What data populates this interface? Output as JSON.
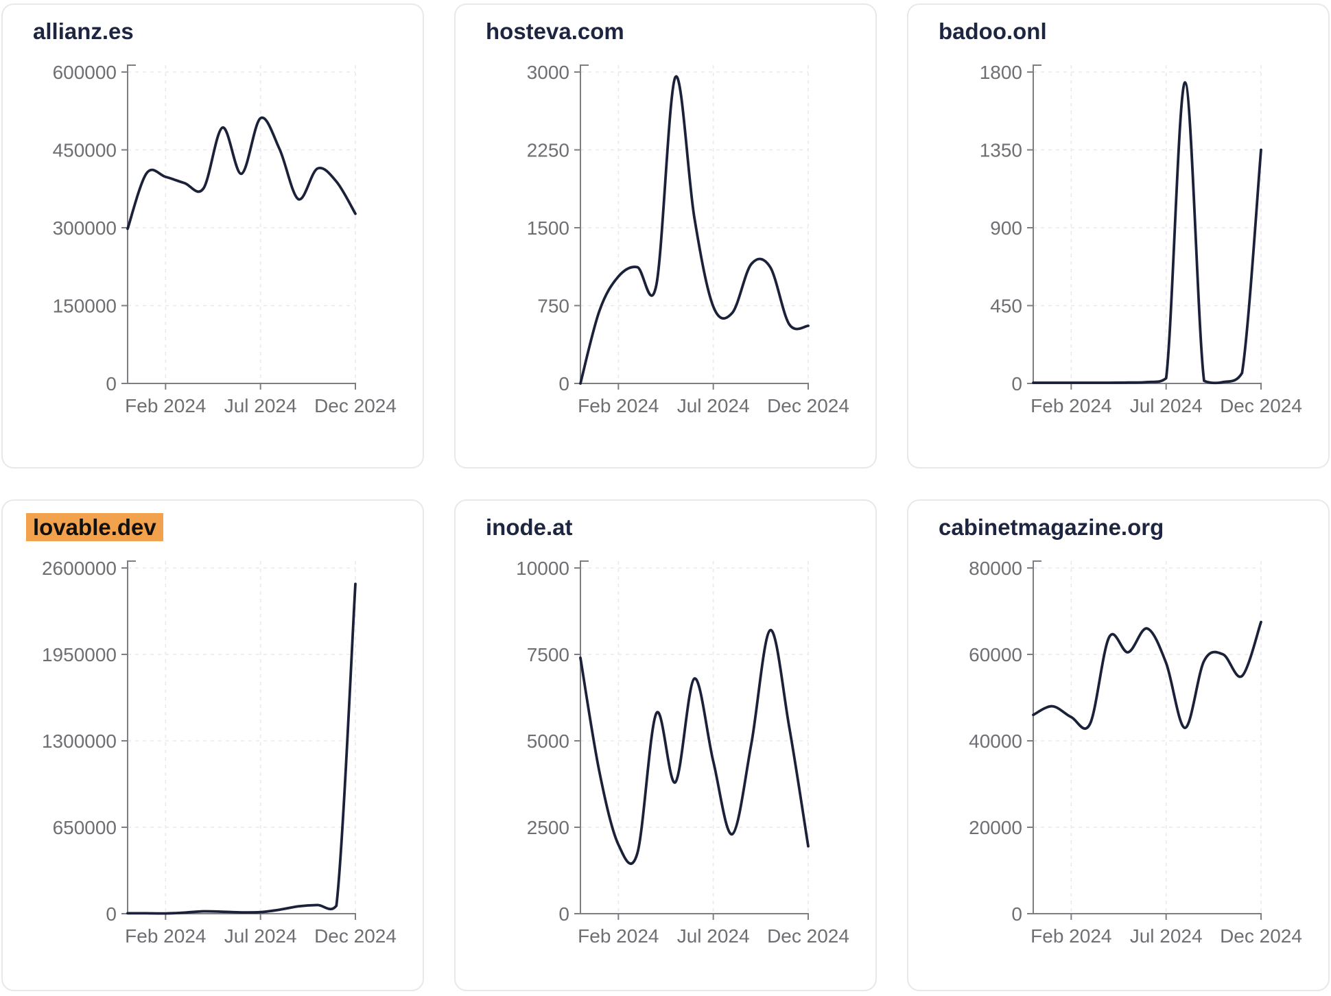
{
  "page_title": "Domain traffic trend dashboard",
  "colors": {
    "background": "#ffffff",
    "card_border": "#e7e8ec",
    "title_text": "#1d2541",
    "highlight_bg": "#f2a24c",
    "highlight_text": "#111111",
    "series_line": "#1b2138",
    "axis": "#7d7d82",
    "tick_label": "#6e6e73",
    "gridline": "#e9eaee"
  },
  "chart_data": [
    {
      "type": "line",
      "title": "allianz.es",
      "highlighted_title": false,
      "x": [
        "Dec 2023",
        "Jan 2024",
        "Feb 2024",
        "Mar 2024",
        "Apr 2024",
        "May 2024",
        "Jun 2024",
        "Jul 2024",
        "Aug 2024",
        "Sep 2024",
        "Oct 2024",
        "Nov 2024",
        "Dec 2024"
      ],
      "values": [
        298000,
        405000,
        398000,
        386000,
        376000,
        493000,
        404000,
        511000,
        452000,
        355000,
        414000,
        389000,
        327000
      ],
      "ylim": [
        0,
        600000
      ],
      "y_ticks": [
        600000,
        450000,
        300000,
        150000,
        0
      ],
      "x_tick_labels": [
        "Feb 2024",
        "Jul 2024",
        "Dec 2024"
      ],
      "x_tick_positions": [
        2,
        7,
        12
      ],
      "grid": "dashed",
      "legend": "none"
    },
    {
      "type": "line",
      "title": "hosteva.com",
      "highlighted_title": false,
      "x": [
        "Dec 2023",
        "Jan 2024",
        "Feb 2024",
        "Mar 2024",
        "Apr 2024",
        "May 2024",
        "Jun 2024",
        "Jul 2024",
        "Aug 2024",
        "Sep 2024",
        "Oct 2024",
        "Nov 2024",
        "Dec 2024"
      ],
      "values": [
        0,
        700,
        1030,
        1120,
        950,
        2950,
        1600,
        740,
        680,
        1150,
        1120,
        570,
        555
      ],
      "ylim": [
        0,
        3000
      ],
      "y_ticks": [
        3000,
        2250,
        1500,
        750,
        0
      ],
      "x_tick_labels": [
        "Feb 2024",
        "Jul 2024",
        "Dec 2024"
      ],
      "x_tick_positions": [
        2,
        7,
        12
      ],
      "grid": "dashed",
      "legend": "none"
    },
    {
      "type": "line",
      "title": "badoo.onl",
      "highlighted_title": false,
      "x": [
        "Dec 2023",
        "Jan 2024",
        "Feb 2024",
        "Mar 2024",
        "Apr 2024",
        "May 2024",
        "Jun 2024",
        "Jul 2024",
        "Aug 2024",
        "Sep 2024",
        "Oct 2024",
        "Nov 2024",
        "Dec 2024"
      ],
      "values": [
        4,
        4,
        4,
        4,
        4,
        5,
        8,
        30,
        1740,
        15,
        8,
        60,
        1350
      ],
      "ylim": [
        0,
        1800
      ],
      "y_ticks": [
        1800,
        1350,
        900,
        450,
        0
      ],
      "x_tick_labels": [
        "Feb 2024",
        "Jul 2024",
        "Dec 2024"
      ],
      "x_tick_positions": [
        2,
        7,
        12
      ],
      "grid": "dashed",
      "legend": "none"
    },
    {
      "type": "line",
      "title": "lovable.dev",
      "highlighted_title": true,
      "x": [
        "Dec 2023",
        "Jan 2024",
        "Feb 2024",
        "Mar 2024",
        "Apr 2024",
        "May 2024",
        "Jun 2024",
        "Jul 2024",
        "Aug 2024",
        "Sep 2024",
        "Oct 2024",
        "Nov 2024",
        "Dec 2024"
      ],
      "values": [
        3000,
        3000,
        2000,
        8000,
        18000,
        15000,
        10000,
        12000,
        30000,
        55000,
        65000,
        60000,
        2480000
      ],
      "ylim": [
        0,
        2600000
      ],
      "y_ticks": [
        2600000,
        1950000,
        1300000,
        650000,
        0
      ],
      "x_tick_labels": [
        "Feb 2024",
        "Jul 2024",
        "Dec 2024"
      ],
      "x_tick_positions": [
        2,
        7,
        12
      ],
      "grid": "dashed",
      "legend": "none"
    },
    {
      "type": "line",
      "title": "inode.at",
      "highlighted_title": false,
      "x": [
        "Dec 2023",
        "Jan 2024",
        "Feb 2024",
        "Mar 2024",
        "Apr 2024",
        "May 2024",
        "Jun 2024",
        "Jul 2024",
        "Aug 2024",
        "Sep 2024",
        "Oct 2024",
        "Nov 2024",
        "Dec 2024"
      ],
      "values": [
        7400,
        4100,
        2000,
        1750,
        5800,
        3800,
        6800,
        4400,
        2300,
        4900,
        8200,
        5400,
        1950
      ],
      "ylim": [
        0,
        10000
      ],
      "y_ticks": [
        10000,
        7500,
        5000,
        2500,
        0
      ],
      "x_tick_labels": [
        "Feb 2024",
        "Jul 2024",
        "Dec 2024"
      ],
      "x_tick_positions": [
        2,
        7,
        12
      ],
      "grid": "dashed",
      "legend": "none"
    },
    {
      "type": "line",
      "title": "cabinetmagazine.org",
      "highlighted_title": false,
      "x": [
        "Dec 2023",
        "Jan 2024",
        "Feb 2024",
        "Mar 2024",
        "Apr 2024",
        "May 2024",
        "Jun 2024",
        "Jul 2024",
        "Aug 2024",
        "Sep 2024",
        "Oct 2024",
        "Nov 2024",
        "Dec 2024"
      ],
      "values": [
        46000,
        48000,
        45500,
        44000,
        64000,
        60500,
        66000,
        58000,
        43000,
        58500,
        60000,
        55000,
        67500
      ],
      "ylim": [
        0,
        80000
      ],
      "y_ticks": [
        80000,
        60000,
        40000,
        20000,
        0
      ],
      "x_tick_labels": [
        "Feb 2024",
        "Jul 2024",
        "Dec 2024"
      ],
      "x_tick_positions": [
        2,
        7,
        12
      ],
      "grid": "dashed",
      "legend": "none"
    }
  ]
}
